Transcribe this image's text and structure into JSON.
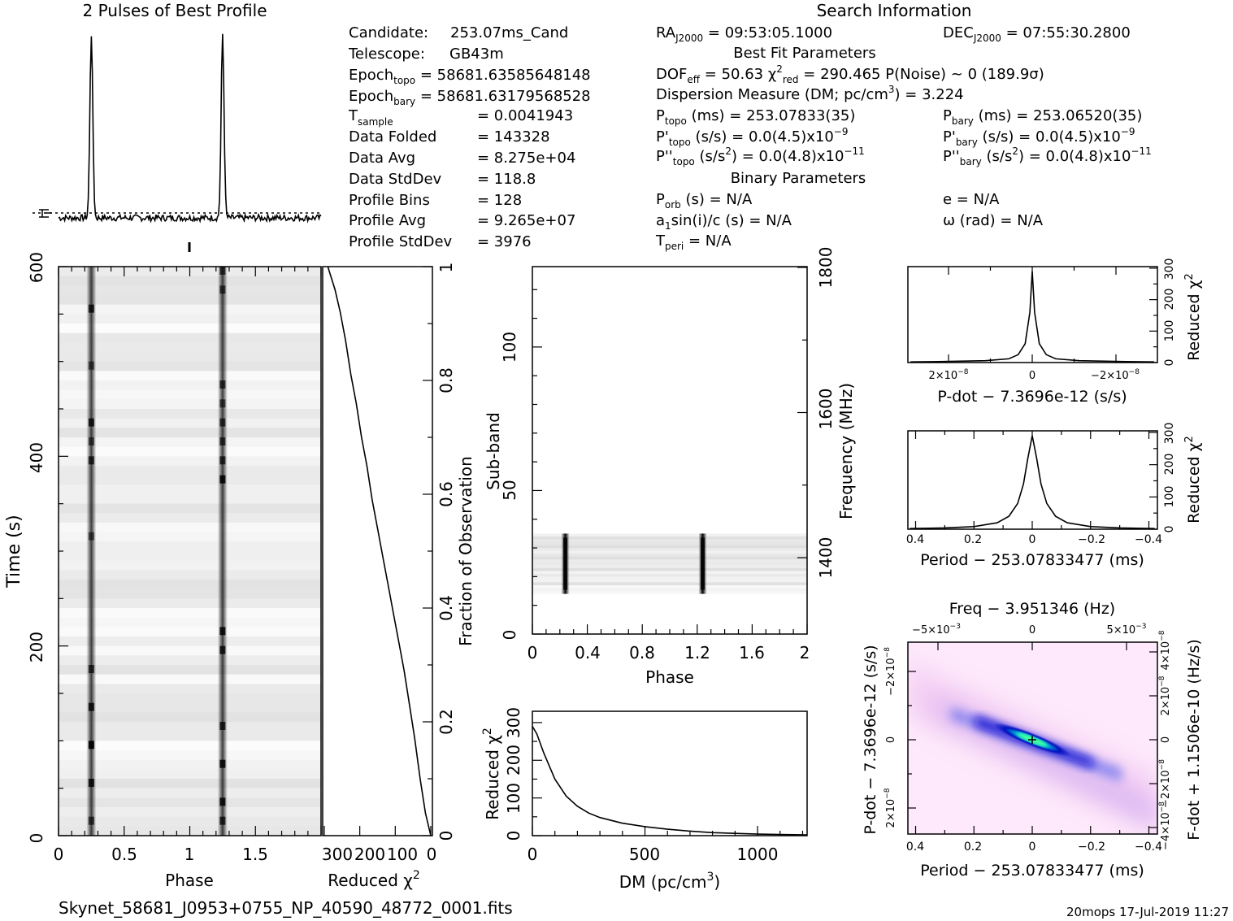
{
  "header": {
    "title_left": "2 Pulses of Best Profile",
    "title_right": "Search Information",
    "filename": "Skynet_58681_J0953+0755_NP_40590_48772_0001.fits",
    "stamp": "20mops  17-Jul-2019 11:27"
  },
  "info": {
    "left": [
      {
        "k": "Candidate:",
        "v": "253.07ms_Cand"
      },
      {
        "k": "Telescope:",
        "v": "GB43m"
      },
      {
        "k": "Epoch_topo",
        "v": "= 58681.63585648148"
      },
      {
        "k": "Epoch_bary",
        "v": "= 58681.63179568528"
      },
      {
        "k": "T_sample",
        "v": "=  0.0041943"
      },
      {
        "k": "Data Folded",
        "v": "=  143328"
      },
      {
        "k": "Data Avg",
        "v": "=  8.275e+04"
      },
      {
        "k": "Data StdDev",
        "v": "=  118.8"
      },
      {
        "k": "Profile Bins",
        "v": "=  128"
      },
      {
        "k": "Profile Avg",
        "v": "=  9.265e+07"
      },
      {
        "k": "Profile StdDev",
        "v": "=  3976"
      }
    ],
    "ra": "RA_J2000 = 09:53:05.1000",
    "dec": "DEC_J2000 = 07:55:30.2800",
    "best_fit_heading": "Best Fit Parameters",
    "dof_line": "DOF_eff = 50.63  χ²_red = 290.465  P(Noise) ~ 0   (189.9σ)",
    "dm_line": "Dispersion Measure (DM; pc/cm³) = 3.224",
    "ptopo": "P_topo (ms) =  253.07833(35)",
    "pbary": "P_bary (ms) =  253.06520(35)",
    "pdtopo": "P'_topo (s/s) = 0.0(4.5)x10⁻⁹",
    "pdbary": "P'_bary (s/s) = 0.0(4.5)x10⁻⁹",
    "pddtopo": "P''_topo (s/s²) = 0.0(4.8)x10⁻¹¹",
    "pddbary": "P''_bary (s/s²) = 0.0(4.8)x10⁻¹¹",
    "binary_heading": "Binary Parameters",
    "porb": "P_orb (s) = N/A",
    "ecc": "e = N/A",
    "a1": "a₁sin(i)/c (s) = N/A",
    "omega": "ω (rad) = N/A",
    "tperi": "T_peri = N/A"
  },
  "chart_data": [
    {
      "type": "line",
      "title": "2 Pulses of Best Profile",
      "description_series": "pulse profile over 2 rotations",
      "x": [
        0,
        0.1,
        0.2,
        0.23,
        0.25,
        0.27,
        0.3,
        0.5,
        0.8,
        1.0,
        1.1,
        1.2,
        1.23,
        1.25,
        1.27,
        1.3,
        1.5,
        1.8,
        2.0
      ],
      "y": [
        0.01,
        0.02,
        0.12,
        0.6,
        1.0,
        0.55,
        0.03,
        0.0,
        0.01,
        0.01,
        0.02,
        0.12,
        0.6,
        1.0,
        0.55,
        0.03,
        0.0,
        0.01,
        0.01
      ]
    },
    {
      "type": "heatmap",
      "xlabel": "Phase",
      "ylabel": "Time (s)",
      "xlim": [
        0,
        2
      ],
      "ylim": [
        0,
        600
      ],
      "xticks": [
        "0",
        "0.5",
        "1",
        "1.5"
      ],
      "yticks": [
        "0",
        "200",
        "400",
        "600"
      ],
      "pulse_phases": [
        0.25,
        1.25
      ]
    },
    {
      "type": "line",
      "xlabel": "Reduced χ²",
      "ylabel": "Fraction of Observation",
      "xlim": [
        300,
        0
      ],
      "ylim": [
        0,
        1
      ],
      "xticks": [
        "300",
        "200",
        "100",
        "0"
      ],
      "yticks": [
        "0",
        "0.2",
        "0.4",
        "0.6",
        "0.8",
        "1"
      ],
      "x": [
        0,
        15,
        30,
        45,
        60,
        75,
        90,
        105,
        120,
        135,
        150,
        165,
        180,
        195,
        210,
        225,
        240,
        255,
        270,
        285,
        290
      ],
      "y": [
        0.0,
        0.04,
        0.1,
        0.17,
        0.23,
        0.29,
        0.34,
        0.39,
        0.44,
        0.49,
        0.54,
        0.59,
        0.65,
        0.7,
        0.76,
        0.81,
        0.87,
        0.92,
        0.96,
        0.99,
        1.0
      ]
    },
    {
      "type": "heatmap",
      "xlabel": "Phase",
      "ylabel": "Sub-band",
      "right_label": "Frequency (MHz)",
      "xlim": [
        0,
        2
      ],
      "ylim": [
        0,
        128
      ],
      "xticks": [
        "0",
        "0.4",
        "0.8",
        "1.2",
        "1.6",
        "2"
      ],
      "yticks": [
        "0",
        "50",
        "100"
      ],
      "right_ticks": [
        "1400",
        "1600",
        "1800"
      ],
      "band_subbands": [
        14,
        35
      ],
      "pulse_phases": [
        0.24,
        1.24
      ]
    },
    {
      "type": "line",
      "xlabel": "DM (pc/cm³)",
      "ylabel": "Reduced χ²",
      "xlim": [
        0,
        1220
      ],
      "ylim": [
        0,
        320
      ],
      "xticks": [
        "0",
        "500",
        "1000"
      ],
      "yticks": [
        "0",
        "100",
        "200",
        "300"
      ],
      "x": [
        0,
        20,
        50,
        100,
        150,
        200,
        250,
        300,
        400,
        500,
        600,
        700,
        800,
        900,
        1000,
        1100,
        1220
      ],
      "y": [
        290,
        270,
        220,
        150,
        105,
        78,
        60,
        48,
        33,
        24,
        17,
        12,
        8,
        6,
        4,
        3,
        2
      ]
    },
    {
      "type": "line",
      "xlabel": "P-dot − 7.3696e-12 (s/s)",
      "ylabel": "Reduced χ²",
      "xticks": [
        "2×10⁻⁸",
        "0",
        "−2×10⁻⁸"
      ],
      "yticks": [
        "0",
        "100",
        "200",
        "300"
      ],
      "ylim": [
        0,
        300
      ],
      "x": [
        2.6,
        2.0,
        1.0,
        0.5,
        0.3,
        0.15,
        0.05,
        0,
        -0.05,
        -0.15,
        -0.3,
        -0.5,
        -1.0,
        -2.0,
        -2.6
      ],
      "y": [
        2,
        3,
        6,
        12,
        25,
        60,
        160,
        290,
        160,
        60,
        25,
        12,
        6,
        3,
        2
      ]
    },
    {
      "type": "line",
      "xlabel": "Period − 253.07833477 (ms)",
      "ylabel": "Reduced χ²",
      "xlim": [
        0.42,
        -0.42
      ],
      "ylim": [
        0,
        300
      ],
      "xticks": [
        "0.4",
        "0.2",
        "0",
        "−0.2",
        "−0.4"
      ],
      "yticks": [
        "0",
        "100",
        "200",
        "300"
      ],
      "x": [
        0.42,
        0.3,
        0.2,
        0.12,
        0.08,
        0.05,
        0.03,
        0.015,
        0,
        -0.015,
        -0.03,
        -0.05,
        -0.08,
        -0.12,
        -0.2,
        -0.3,
        -0.42
      ],
      "y": [
        2,
        4,
        8,
        20,
        40,
        80,
        140,
        220,
        290,
        220,
        140,
        80,
        40,
        20,
        8,
        4,
        2
      ]
    },
    {
      "type": "heatmap",
      "title": "Freq − 3.951346 (Hz)",
      "xlabel": "Period − 253.07833477 (ms)",
      "ylabel": "P-dot − 7.3696e-12 (s/s)",
      "right_label": "F-dot + 1.1506e-10 (Hz/s)",
      "xticks": [
        "0.4",
        "0.2",
        "0",
        "−0.2",
        "−0.4"
      ],
      "top_ticks": [
        "−5×10⁻³",
        "0",
        "5×10⁻³"
      ],
      "yticks": [
        "−2×10⁻⁸",
        "0",
        "2×10⁻⁸"
      ],
      "right_ticks": [
        "4×10⁻⁸",
        "2×10⁻⁸",
        "0",
        "−2×10⁻⁸",
        "−4×10⁻⁸"
      ]
    }
  ]
}
